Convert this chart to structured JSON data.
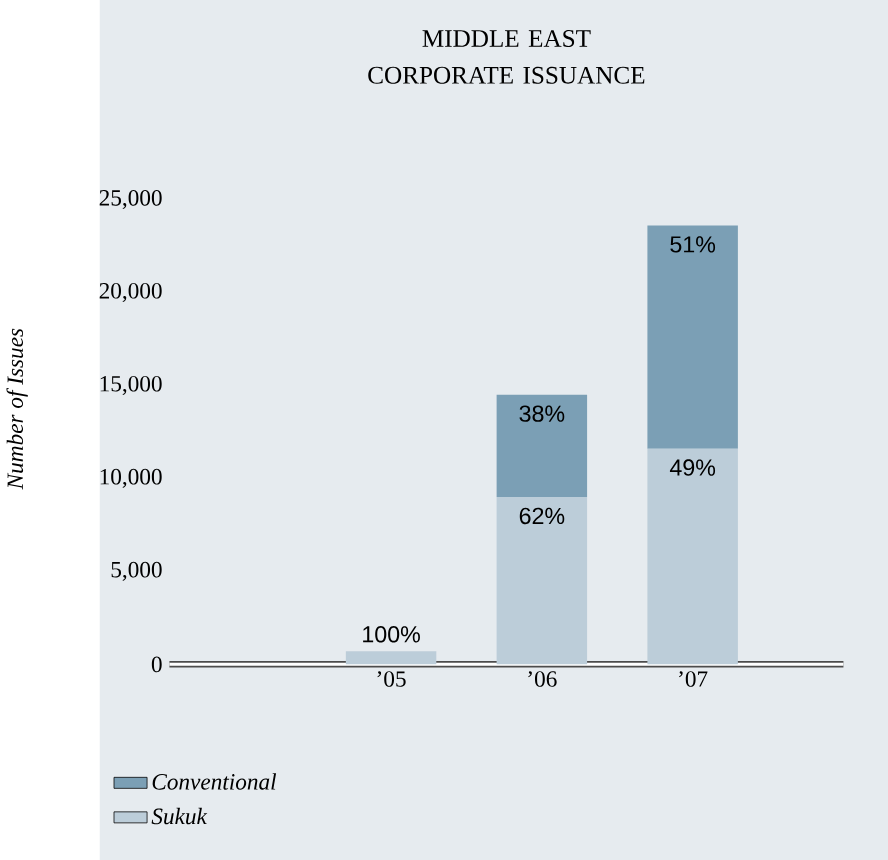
{
  "chart_data": {
    "type": "bar",
    "stacked": true,
    "title": "MIDDLE EAST CORPORATE ISSUANCE",
    "ylabel": "Number of Issues",
    "categories": [
      "’05",
      "’06",
      "’07"
    ],
    "series": [
      {
        "name": "Sukuk",
        "color": "#bccdd9",
        "values": [
          700,
          9000,
          11600
        ]
      },
      {
        "name": "Conventional",
        "color": "#7b9fb5",
        "values": [
          0,
          5500,
          12000
        ]
      }
    ],
    "annotations": [
      {
        "text": "100%",
        "x": "’05",
        "y": 700
      },
      {
        "text": "62%",
        "x": "’06",
        "y": 9000
      },
      {
        "text": "38%",
        "x": "’06",
        "y": 14500
      },
      {
        "text": "49%",
        "x": "’07",
        "y": 11600
      },
      {
        "text": "51%",
        "x": "’07",
        "y": 23600
      }
    ],
    "ylim": [
      0,
      25000
    ],
    "yticks": [
      {
        "value": 0,
        "label": "0"
      },
      {
        "value": 5000,
        "label": "5,000"
      },
      {
        "value": 10000,
        "label": "10,000"
      },
      {
        "value": 15000,
        "label": "15,000"
      },
      {
        "value": 20000,
        "label": "20,000"
      },
      {
        "value": 25000,
        "label": "25,000"
      }
    ],
    "legend": "bottom left"
  }
}
